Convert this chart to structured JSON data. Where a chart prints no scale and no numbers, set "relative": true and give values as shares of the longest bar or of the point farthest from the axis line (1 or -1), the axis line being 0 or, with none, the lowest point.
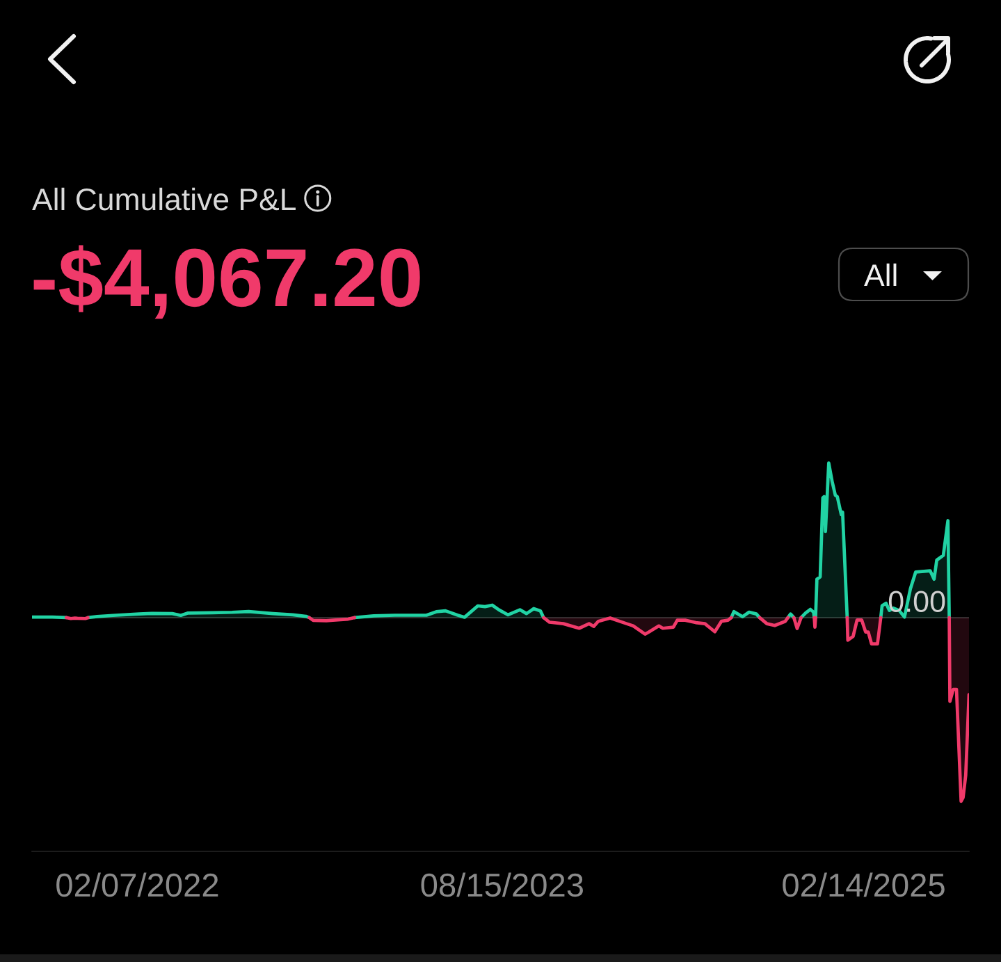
{
  "chart_data": {
    "type": "area",
    "title": "All Cumulative P&L",
    "subtitle": "-$4,067.20",
    "annotations": [
      "All"
    ],
    "relative": true,
    "x": [
      "2021-08-31",
      "2021-10-01",
      "2021-10-22",
      "2021-10-29",
      "2021-11-04",
      "2021-11-08",
      "2021-11-20",
      "2021-11-24",
      "2021-12-08",
      "2022-01-01",
      "2022-02-10",
      "2022-03-01",
      "2022-04-01",
      "2022-04-14",
      "2022-04-25",
      "2022-06-01",
      "2022-07-01",
      "2022-07-26",
      "2022-09-01",
      "2022-10-01",
      "2022-10-21",
      "2022-10-26",
      "2022-11-01",
      "2022-11-21",
      "2022-12-01",
      "2022-12-24",
      "2023-01-03",
      "2023-02-01",
      "2023-03-05",
      "2023-04-22",
      "2023-05-07",
      "2023-05-21",
      "2023-06-08",
      "2023-06-19",
      "2023-07-09",
      "2023-07-20",
      "2023-07-31",
      "2023-08-10",
      "2023-08-24",
      "2023-09-11",
      "2023-09-21",
      "2023-10-02",
      "2023-10-12",
      "2023-10-17",
      "2023-10-26",
      "2023-11-16",
      "2023-12-10",
      "2023-12-25",
      "2024-01-01",
      "2024-01-08",
      "2024-01-26",
      "2024-02-20",
      "2024-03-01",
      "2024-03-19",
      "2024-03-25",
      "2024-04-09",
      "2024-04-15",
      "2024-05-01",
      "2024-05-07",
      "2024-05-19",
      "2024-06-04",
      "2024-06-18",
      "2024-07-03",
      "2024-07-13",
      "2024-07-23",
      "2024-07-28",
      "2024-08-01",
      "2024-08-14",
      "2024-08-24",
      "2024-09-04",
      "2024-09-09",
      "2024-09-20",
      "2024-10-02",
      "2024-10-18",
      "2024-10-22",
      "2024-10-26",
      "2024-10-31",
      "2024-11-05",
      "2024-11-11",
      "2024-11-18",
      "2024-11-25",
      "2024-11-30",
      "2024-12-01",
      "2024-12-02",
      "2024-12-03",
      "2024-12-05",
      "2024-12-10",
      "2024-12-14",
      "2024-12-16",
      "2024-12-18",
      "2024-12-23",
      "2024-12-28",
      "2025-01-02",
      "2025-01-05",
      "2025-01-11",
      "2025-01-13",
      "2025-01-20",
      "2025-01-21",
      "2025-01-29",
      "2025-02-04",
      "2025-02-11",
      "2025-02-17",
      "2025-02-21",
      "2025-02-26",
      "2025-03-07",
      "2025-03-12",
      "2025-03-14",
      "2025-03-20",
      "2025-03-25",
      "2025-03-31",
      "2025-04-09",
      "2025-04-17",
      "2025-04-26",
      "2025-05-04",
      "2025-05-26",
      "2025-06-01",
      "2025-06-05",
      "2025-06-15",
      "2025-06-22",
      "2025-06-24",
      "2025-06-25",
      "2025-06-30",
      "2025-07-05",
      "2025-07-12",
      "2025-07-15",
      "2025-07-19",
      "2025-07-24"
    ],
    "xlim": [
      "2021-08-31",
      "2025-07-24"
    ],
    "xticks": [
      {
        "value": "2022-02-07",
        "label": "02/07/2022"
      },
      {
        "value": "2023-08-15",
        "label": "08/15/2023"
      },
      {
        "value": "2025-02-14",
        "label": "02/14/2025"
      }
    ],
    "series": [
      {
        "color": "#21d3a4",
        "values": [
          0.003,
          0.003,
          0.0,
          null,
          null,
          null,
          null,
          0.0,
          0.006,
          0.012,
          0.02,
          0.023,
          0.022,
          0.012,
          0.025,
          0.027,
          0.029,
          0.033,
          0.022,
          0.015,
          0.007,
          0.0,
          null,
          null,
          null,
          null,
          0.0,
          0.01,
          0.013,
          0.013,
          0.032,
          0.037,
          0.014,
          0.002,
          0.064,
          0.06,
          0.068,
          0.043,
          0.015,
          0.043,
          0.022,
          0.049,
          0.037,
          0.0,
          null,
          null,
          null,
          null,
          null,
          null,
          null,
          null,
          null,
          null,
          null,
          null,
          null,
          null,
          null,
          null,
          null,
          null,
          null,
          null,
          null,
          0.0,
          0.033,
          0.005,
          0.03,
          0.02,
          0.0,
          null,
          null,
          null,
          0.0,
          0.02,
          0.0,
          null,
          0.0,
          0.026,
          0.045,
          0.03,
          0.0,
          null,
          0.0,
          0.209,
          0.222,
          0.652,
          0.659,
          0.47,
          0.842,
          0.744,
          0.666,
          0.659,
          0.561,
          0.574,
          0.0,
          null,
          null,
          null,
          null,
          null,
          null,
          null,
          null,
          0.0,
          0.065,
          0.078,
          0.039,
          0.052,
          0.039,
          0.003,
          0.157,
          0.248,
          0.255,
          0.209,
          0.313,
          0.339,
          0.528,
          0.0,
          null,
          null,
          null,
          null,
          null,
          null,
          null
        ]
      },
      {
        "color": "#f03a6a",
        "values": [
          null,
          null,
          0.0,
          -0.005,
          -0.003,
          -0.004,
          -0.005,
          0.0,
          null,
          null,
          null,
          null,
          null,
          null,
          null,
          null,
          null,
          null,
          null,
          null,
          null,
          0.0,
          -0.015,
          -0.017,
          -0.014,
          -0.008,
          0.0,
          null,
          null,
          null,
          null,
          null,
          null,
          null,
          null,
          null,
          null,
          null,
          null,
          null,
          null,
          null,
          null,
          0.0,
          -0.025,
          -0.033,
          -0.058,
          -0.033,
          -0.048,
          -0.02,
          -0.002,
          -0.033,
          -0.045,
          -0.09,
          -0.078,
          -0.045,
          -0.058,
          -0.052,
          -0.014,
          -0.014,
          -0.027,
          -0.033,
          -0.077,
          -0.02,
          -0.014,
          0.0,
          null,
          null,
          null,
          null,
          0.0,
          -0.033,
          -0.043,
          -0.02,
          0.0,
          null,
          0.0,
          -0.059,
          0.0,
          null,
          null,
          null,
          0.0,
          -0.052,
          0.0,
          null,
          null,
          null,
          null,
          null,
          null,
          null,
          null,
          null,
          null,
          null,
          0.0,
          -0.123,
          -0.102,
          -0.013,
          -0.013,
          -0.078,
          -0.078,
          -0.143,
          -0.143,
          0.0,
          null,
          null,
          null,
          null,
          null,
          null,
          null,
          null,
          null,
          null,
          null,
          null,
          null,
          0.0,
          -0.456,
          -0.391,
          -0.391,
          -1,
          -0.98,
          -0.859,
          -0.419
        ]
      }
    ],
    "ref_lines": [
      {
        "axis": "y",
        "value": 0,
        "label": "0.00",
        "color": "#2e2e2e",
        "line_style": "solid"
      }
    ]
  }
}
